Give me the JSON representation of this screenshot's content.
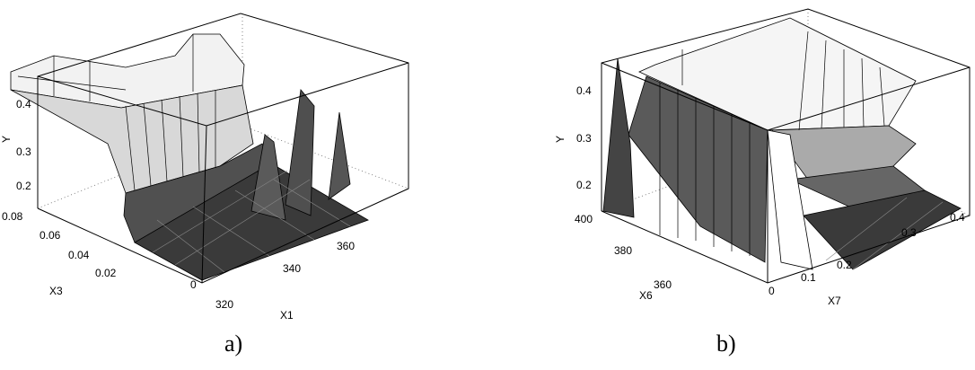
{
  "panels": [
    {
      "caption": "a)",
      "y_axis": {
        "label": "Y",
        "ticks": [
          0.2,
          0.3,
          0.4
        ]
      },
      "depth_axis": {
        "label": "X3",
        "ticks": [
          0,
          0.02,
          0.04,
          0.06,
          0.08
        ]
      },
      "x_axis": {
        "label": "X1",
        "ticks": [
          320,
          340,
          360
        ]
      }
    },
    {
      "caption": "b)",
      "y_axis": {
        "label": "Y",
        "ticks": [
          0.2,
          0.3,
          0.4
        ]
      },
      "depth_axis": {
        "label": "X6",
        "ticks": [
          360,
          380,
          400
        ]
      },
      "x_axis": {
        "label": "X7",
        "ticks": [
          0,
          0.1,
          0.2,
          0.3,
          0.4
        ]
      }
    }
  ]
}
